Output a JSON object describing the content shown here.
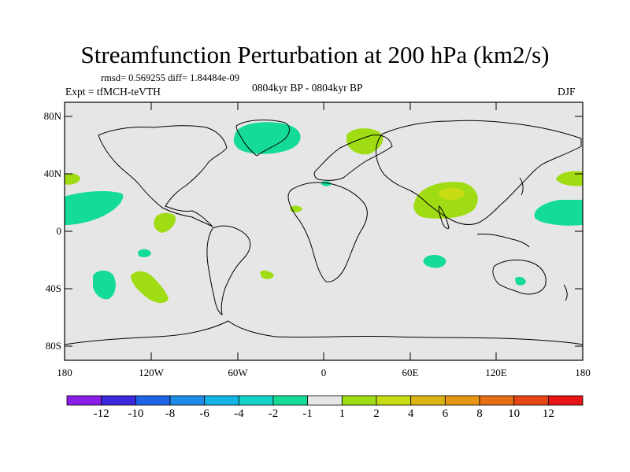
{
  "title": "Streamfunction Perturbation at 200 hPa (km2/s)",
  "stats": "rmsd= 0.569255  diff= 1.84484e-09",
  "experiment": "Expt = tfMCH-teVTH",
  "period": "0804kyr BP - 0804kyr BP",
  "season": "DJF",
  "map": {
    "lat_ticks": [
      "80N",
      "40N",
      "0",
      "40S",
      "80S"
    ],
    "lon_ticks": [
      "180",
      "120W",
      "60W",
      "0",
      "60E",
      "120E",
      "180"
    ]
  },
  "colorbar": {
    "colors": [
      "#8a1ee6",
      "#3c28dc",
      "#1e64e6",
      "#1e8ce6",
      "#14b4e6",
      "#14d2c8",
      "#14dc96",
      "#e6e6e6",
      "#a0dc14",
      "#c8dc14",
      "#dcb414",
      "#e69614",
      "#e66e14",
      "#e64614",
      "#e61414"
    ],
    "labels": [
      "-12",
      "-10",
      "-8",
      "-6",
      "-4",
      "-2",
      "-1",
      "1",
      "2",
      "4",
      "6",
      "8",
      "10",
      "12"
    ]
  }
}
